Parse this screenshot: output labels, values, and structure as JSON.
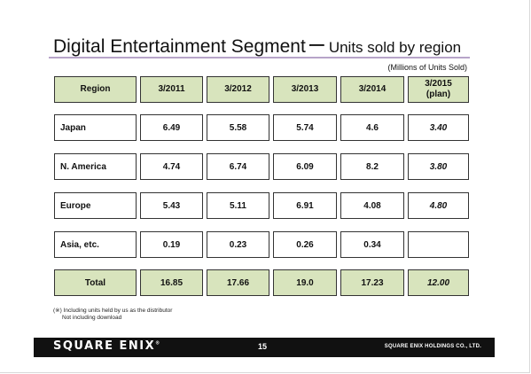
{
  "title": {
    "main": "Digital Entertainment Segment",
    "dash": "ー",
    "sub": "Units sold by region"
  },
  "unit_note": "(Millions of Units Sold)",
  "table": {
    "headers": [
      "Region",
      "3/2011",
      "3/2012",
      "3/2013",
      "3/2014",
      "3/2015",
      "(plan)"
    ],
    "rows": [
      {
        "region": "Japan",
        "v2011": "6.49",
        "v2012": "5.58",
        "v2013": "5.74",
        "v2014": "4.6",
        "plan": "3.40"
      },
      {
        "region": "N. America",
        "v2011": "4.74",
        "v2012": "6.74",
        "v2013": "6.09",
        "v2014": "8.2",
        "plan": "3.80"
      },
      {
        "region": "Europe",
        "v2011": "5.43",
        "v2012": "5.11",
        "v2013": "6.91",
        "v2014": "4.08",
        "plan": "4.80"
      },
      {
        "region": "Asia, etc.",
        "v2011": "0.19",
        "v2012": "0.23",
        "v2013": "0.26",
        "v2014": "0.34",
        "plan": ""
      }
    ],
    "total": {
      "region": "Total",
      "v2011": "16.85",
      "v2012": "17.66",
      "v2013": "19.0",
      "v2014": "17.23",
      "plan": "12.00"
    }
  },
  "footnote": {
    "line1": "(※) Including units held by us as the distributor",
    "line2": "Not including download"
  },
  "footer": {
    "logo": "SQUARE ENIX",
    "logo_mark": "®",
    "page_number": "15",
    "company": "SQUARE ENIX HOLDINGS CO., LTD."
  },
  "colors": {
    "header_fill": "#d8e4bd",
    "title_rule": "#b7a4c9",
    "footer_bar": "#111111"
  }
}
